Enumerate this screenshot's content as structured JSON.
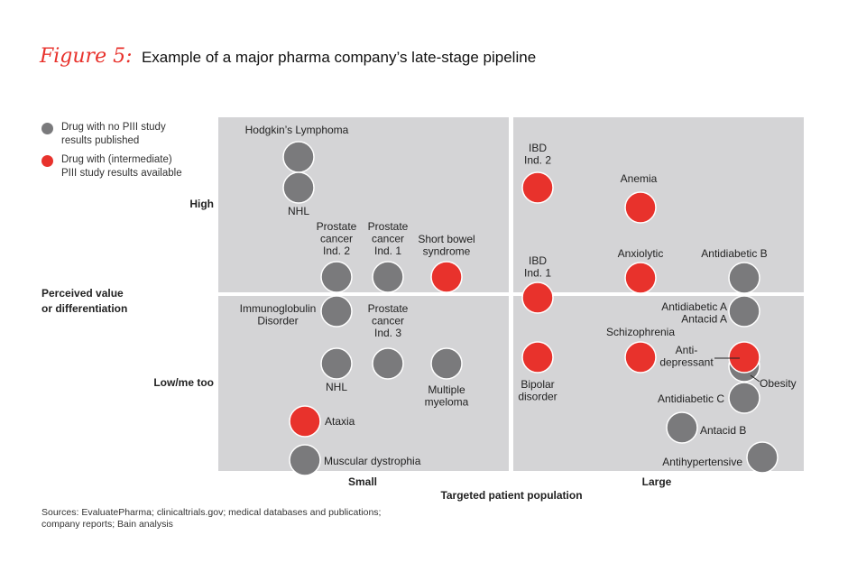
{
  "title": {
    "figure_label": "Figure 5:",
    "text": "Example of a major pharma company’s late-stage pipeline"
  },
  "legend": [
    {
      "label": "Drug with no PIII study results published",
      "color": "#7a7a7c"
    },
    {
      "label": "Drug with (intermediate) PIII study results available",
      "color": "#e8322c"
    }
  ],
  "colors": {
    "gray": "#7a7a7c",
    "red": "#e8322c",
    "panel": "#d4d4d6"
  },
  "source": "Sources: EvaluatePharma; clinicaltrials.gov; medical databases and publications; company reports; Bain analysis",
  "chart_data": {
    "type": "scatter",
    "x_axis": {
      "label": "Targeted patient population",
      "categories": [
        "Small",
        "Large"
      ]
    },
    "y_axis": {
      "label": "Perceived value or differentiation",
      "categories": [
        "Low/me too",
        "High"
      ]
    },
    "grid": "2x2 quadrants",
    "points": [
      {
        "label": "Hodgkin’s Lymphoma",
        "x_category": "Small",
        "y_category": "High",
        "status": "gray"
      },
      {
        "label": "NHL",
        "x_category": "Small",
        "y_category": "High",
        "status": "gray"
      },
      {
        "label": "Prostate cancer Ind. 2",
        "x_category": "Small",
        "y_category": "High",
        "status": "gray"
      },
      {
        "label": "Prostate cancer Ind. 1",
        "x_category": "Small",
        "y_category": "High",
        "status": "gray"
      },
      {
        "label": "Short bowel syndrome",
        "x_category": "Small",
        "y_category": "High",
        "status": "red"
      },
      {
        "label": "Immunoglobulin Disorder",
        "x_category": "Small",
        "y_category": "Low/me too",
        "status": "gray"
      },
      {
        "label": "NHL",
        "x_category": "Small",
        "y_category": "Low/me too",
        "status": "gray"
      },
      {
        "label": "Prostate cancer Ind. 3",
        "x_category": "Small",
        "y_category": "Low/me too",
        "status": "gray"
      },
      {
        "label": "Multiple myeloma",
        "x_category": "Small",
        "y_category": "Low/me too",
        "status": "gray"
      },
      {
        "label": "Ataxia",
        "x_category": "Small",
        "y_category": "Low/me too",
        "status": "red"
      },
      {
        "label": "Muscular dystrophia",
        "x_category": "Small",
        "y_category": "Low/me too",
        "status": "gray"
      },
      {
        "label": "IBD Ind. 2",
        "x_category": "Large",
        "y_category": "High",
        "status": "red"
      },
      {
        "label": "Anemia",
        "x_category": "Large",
        "y_category": "High",
        "status": "red"
      },
      {
        "label": "IBD Ind. 1",
        "x_category": "Large",
        "y_category": "High",
        "status": "red"
      },
      {
        "label": "Anxiolytic",
        "x_category": "Large",
        "y_category": "High",
        "status": "red"
      },
      {
        "label": "Antidiabetic B",
        "x_category": "Large",
        "y_category": "High",
        "status": "gray"
      },
      {
        "label": "Antidiabetic A Antacid A",
        "x_category": "Large",
        "y_category": "Low/me too",
        "status": "gray"
      },
      {
        "label": "Schizophrenia",
        "x_category": "Large",
        "y_category": "Low/me too",
        "status": "red"
      },
      {
        "label": "Bipolar disorder",
        "x_category": "Large",
        "y_category": "Low/me too",
        "status": "red"
      },
      {
        "label": "Anti-depressant",
        "x_category": "Large",
        "y_category": "Low/me too",
        "status": "red"
      },
      {
        "label": "Obesity",
        "x_category": "Large",
        "y_category": "Low/me too",
        "status": "gray"
      },
      {
        "label": "Antidiabetic C",
        "x_category": "Large",
        "y_category": "Low/me too",
        "status": "gray"
      },
      {
        "label": "Antacid B",
        "x_category": "Large",
        "y_category": "Low/me too",
        "status": "gray"
      },
      {
        "label": "Antihypertensive",
        "x_category": "Large",
        "y_category": "Low/me too",
        "status": "gray"
      }
    ]
  }
}
